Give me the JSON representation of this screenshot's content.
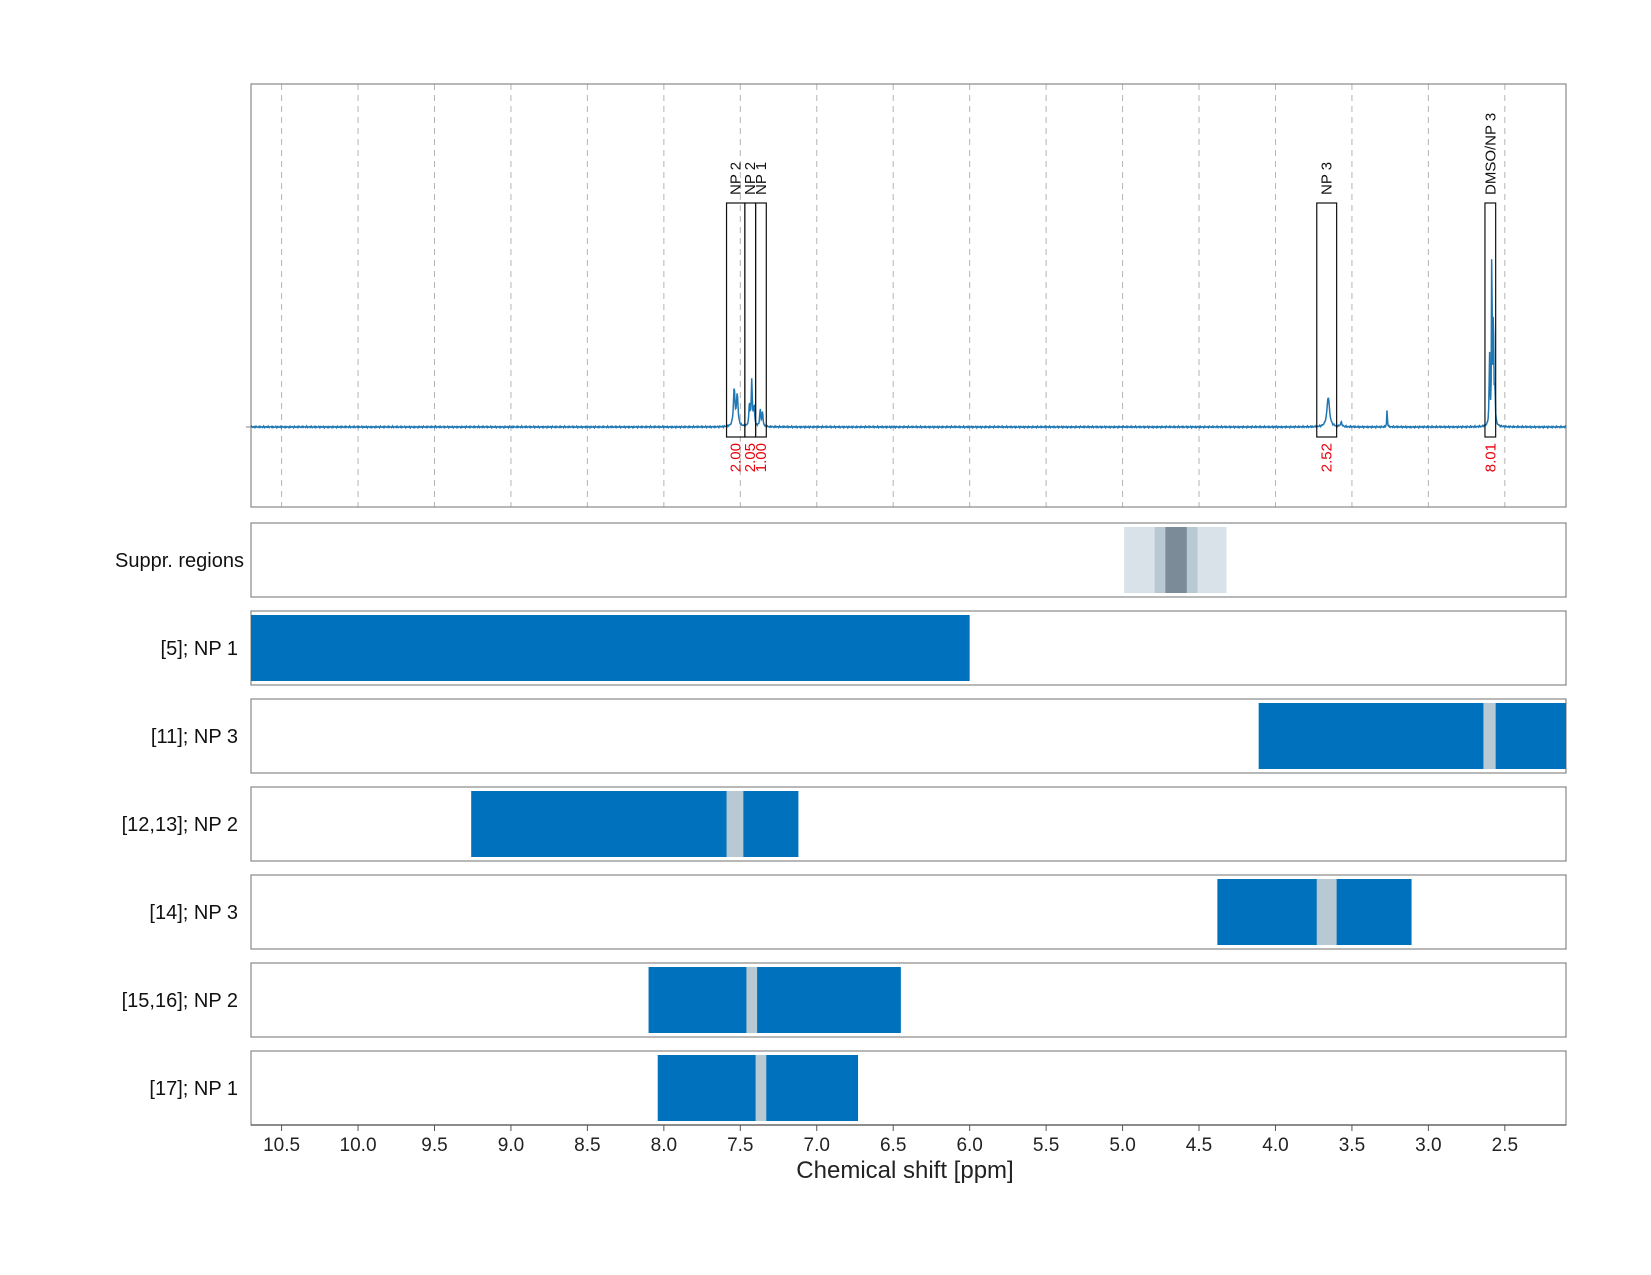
{
  "chart_data": {
    "type": "line",
    "title": "",
    "xlabel": "Chemical shift [ppm]",
    "ylabel": "",
    "xlim": [
      10.7,
      2.1
    ],
    "x_reversed": true,
    "x_ticks": [
      "10.5",
      "10.0",
      "9.5",
      "9.0",
      "8.5",
      "8.0",
      "7.5",
      "7.0",
      "6.5",
      "6.0",
      "5.5",
      "5.0",
      "4.5",
      "4.0",
      "3.5",
      "3.0",
      "2.5"
    ],
    "grid": true,
    "colors": {
      "spectrum": "#1f77b4",
      "range": "#0072bd",
      "gap": "#b9c9d3",
      "suppr_light": "#d9e2e9",
      "suppr_mid": "#b9c9d3",
      "suppr_dark": "#7b8c98",
      "integration": "#e8000b"
    },
    "spectrum": {
      "baseline": 0,
      "ylim": [
        -0.28,
        1.2
      ],
      "peaks": [
        {
          "x": 7.54,
          "height": 0.13,
          "width": 0.006
        },
        {
          "x": 7.52,
          "height": 0.11,
          "width": 0.006
        },
        {
          "x": 7.425,
          "height": 0.16,
          "width": 0.004
        },
        {
          "x": 7.41,
          "height": 0.07,
          "width": 0.004
        },
        {
          "x": 7.44,
          "height": 0.08,
          "width": 0.004
        },
        {
          "x": 7.37,
          "height": 0.06,
          "width": 0.004
        },
        {
          "x": 7.355,
          "height": 0.05,
          "width": 0.004
        },
        {
          "x": 3.655,
          "height": 0.105,
          "width": 0.01
        },
        {
          "x": 3.57,
          "height": 0.015,
          "width": 0.006
        },
        {
          "x": 3.27,
          "height": 0.07,
          "width": 0.002
        },
        {
          "x": 2.6,
          "height": 0.25,
          "width": 0.003
        },
        {
          "x": 2.585,
          "height": 0.75,
          "width": 0.002
        },
        {
          "x": 2.575,
          "height": 0.4,
          "width": 0.003
        },
        {
          "x": 2.565,
          "height": 0.12,
          "width": 0.003
        }
      ]
    },
    "annotations": [
      {
        "label": "NP 2",
        "integration": "2.00",
        "x_start": 7.59,
        "x_end": 7.47
      },
      {
        "label": "NP 2",
        "integration": "2.05",
        "x_start": 7.47,
        "x_end": 7.4
      },
      {
        "label": "NP 1",
        "integration": "1.00",
        "x_start": 7.4,
        "x_end": 7.33
      },
      {
        "label": "NP 3",
        "integration": "2.52",
        "x_start": 3.73,
        "x_end": 3.6
      },
      {
        "label": "DMSO/NP 3",
        "integration": "8.01",
        "x_start": 2.63,
        "x_end": 2.56
      }
    ],
    "suppressed_regions": {
      "label": "Suppr. regions",
      "bands": [
        {
          "x_start": 4.99,
          "x_end": 4.32,
          "level": "light"
        },
        {
          "x_start": 4.79,
          "x_end": 4.51,
          "level": "mid"
        },
        {
          "x_start": 4.72,
          "x_end": 4.58,
          "level": "dark"
        }
      ]
    },
    "rows": [
      {
        "label": "[5]; NP 1",
        "x_start": 10.7,
        "x_end": 6.0,
        "gaps": []
      },
      {
        "label": "[11]; NP 3",
        "x_start": 4.11,
        "x_end": 2.1,
        "gaps": [
          [
            2.64,
            2.56
          ]
        ]
      },
      {
        "label": "[12,13]; NP 2",
        "x_start": 9.26,
        "x_end": 7.12,
        "gaps": [
          [
            7.59,
            7.48
          ]
        ]
      },
      {
        "label": "[14]; NP 3",
        "x_start": 4.38,
        "x_end": 3.11,
        "gaps": [
          [
            3.73,
            3.6
          ]
        ]
      },
      {
        "label": "[15,16]; NP 2",
        "x_start": 8.1,
        "x_end": 6.45,
        "gaps": [
          [
            7.46,
            7.39
          ]
        ]
      },
      {
        "label": "[17]; NP 1",
        "x_start": 8.04,
        "x_end": 6.73,
        "gaps": [
          [
            7.4,
            7.33
          ]
        ]
      }
    ]
  }
}
